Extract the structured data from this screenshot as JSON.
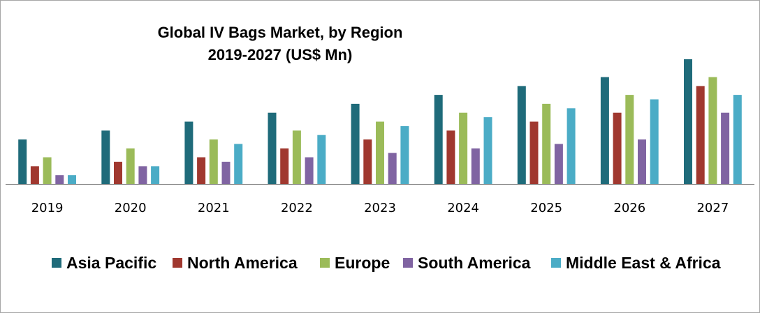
{
  "chart_data": {
    "type": "bar",
    "title_lines": [
      "Global IV Bags Market, by Region",
      "2019-2027 (US$ Mn)"
    ],
    "categories": [
      "2019",
      "2020",
      "2021",
      "2022",
      "2023",
      "2024",
      "2025",
      "2026",
      "2027"
    ],
    "series": [
      {
        "name": "Asia Pacific",
        "color": "#1f6b7a",
        "values": [
          5,
          6,
          7,
          8,
          9,
          10,
          11,
          12,
          14
        ]
      },
      {
        "name": "North America",
        "color": "#a0382f",
        "values": [
          2,
          2.5,
          3,
          4,
          5,
          6,
          7,
          8,
          11
        ]
      },
      {
        "name": "Europe",
        "color": "#9bbb59",
        "values": [
          3,
          4,
          5,
          6,
          7,
          8,
          9,
          10,
          12
        ]
      },
      {
        "name": "South America",
        "color": "#8064a2",
        "values": [
          1,
          2,
          2.5,
          3,
          3.5,
          4,
          4.5,
          5,
          8
        ]
      },
      {
        "name": "Middle East & Africa",
        "color": "#4bacc6",
        "values": [
          1,
          2,
          4.5,
          5.5,
          6.5,
          7.5,
          8.5,
          9.5,
          10
        ]
      }
    ],
    "xlabel": "",
    "ylabel": "",
    "ylim": [
      0,
      14
    ],
    "grid": false,
    "legend_position": "bottom"
  }
}
